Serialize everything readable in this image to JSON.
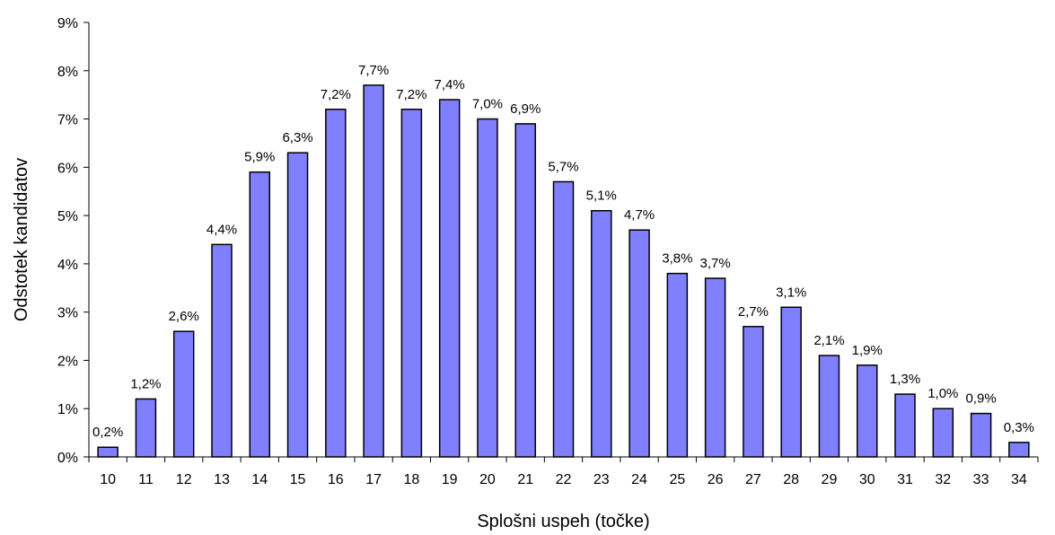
{
  "chart_data": {
    "type": "bar",
    "xlabel": "Splošni uspeh (točke)",
    "ylabel": "Odstotek kandidatov",
    "ylim": [
      0,
      9
    ],
    "y_ticks": [
      "0%",
      "1%",
      "2%",
      "3%",
      "4%",
      "5%",
      "6%",
      "7%",
      "8%",
      "9%"
    ],
    "grid": false,
    "legend": "none",
    "bar_color": "#8080FF",
    "bar_edge_color": "#000000",
    "categories": [
      "10",
      "11",
      "12",
      "13",
      "14",
      "15",
      "16",
      "17",
      "18",
      "19",
      "20",
      "21",
      "22",
      "23",
      "24",
      "25",
      "26",
      "27",
      "28",
      "29",
      "30",
      "31",
      "32",
      "33",
      "34"
    ],
    "values": [
      0.2,
      1.2,
      2.6,
      4.4,
      5.9,
      6.3,
      7.2,
      7.7,
      7.2,
      7.4,
      7.0,
      6.9,
      5.7,
      5.1,
      4.7,
      3.8,
      3.7,
      2.7,
      3.1,
      2.1,
      1.9,
      1.3,
      1.0,
      0.9,
      0.3
    ],
    "data_labels": [
      "0,2%",
      "1,2%",
      "2,6%",
      "4,4%",
      "5,9%",
      "6,3%",
      "7,2%",
      "7,7%",
      "7,2%",
      "7,4%",
      "7,0%",
      "6,9%",
      "5,7%",
      "5,1%",
      "4,7%",
      "3,8%",
      "3,7%",
      "2,7%",
      "3,1%",
      "2,1%",
      "1,9%",
      "1,3%",
      "1,0%",
      "0,9%",
      "0,3%"
    ]
  }
}
